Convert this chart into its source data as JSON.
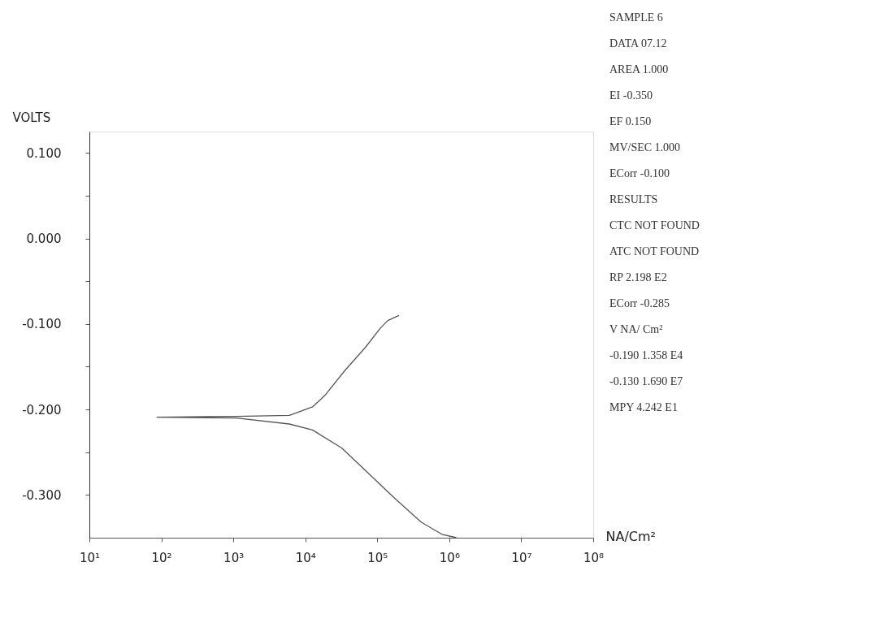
{
  "chart_data": {
    "type": "line",
    "ylabel": "VOLTS",
    "xlabel": "NA/Cm²",
    "log": "x",
    "grid": false,
    "marker": "none",
    "line_style": "solid",
    "xlim": [
      10,
      100000000
    ],
    "xticks": [
      {
        "value": 10,
        "label": "10¹"
      },
      {
        "value": 100,
        "label": "10²"
      },
      {
        "value": 1000,
        "label": "10³"
      },
      {
        "value": 10000,
        "label": "10⁴"
      },
      {
        "value": 100000,
        "label": "10⁵"
      },
      {
        "value": 1000000,
        "label": "10⁶"
      },
      {
        "value": 10000000,
        "label": "10⁷"
      },
      {
        "value": 100000000,
        "label": "10⁸"
      }
    ],
    "ylim": [
      -0.35,
      0.125
    ],
    "yticks": [
      {
        "value": 0.1,
        "label": "0.100"
      },
      {
        "value": 0.05,
        "label": null
      },
      {
        "value": 0,
        "label": "0.000"
      },
      {
        "value": -0.05,
        "label": null
      },
      {
        "value": -0.1,
        "label": "-0.100"
      },
      {
        "value": -0.15,
        "label": null
      },
      {
        "value": -0.2,
        "label": "-0.200"
      },
      {
        "value": -0.25,
        "label": null
      },
      {
        "value": -0.3,
        "label": "-0.300"
      }
    ],
    "series": [
      {
        "color": "#555555",
        "x": [
          1260000,
          790000,
          410000,
          170000,
          76000,
          32000,
          12600,
          6000,
          1100,
          87,
          1100,
          6000,
          12600,
          19000,
          35000,
          69000,
          110000,
          140000,
          200000
        ],
        "values": [
          -0.35,
          -0.346,
          -0.332,
          -0.303,
          -0.275,
          -0.245,
          -0.224,
          -0.217,
          -0.21,
          -0.209,
          -0.208,
          -0.207,
          -0.197,
          -0.183,
          -0.155,
          -0.127,
          -0.105,
          -0.096,
          -0.09
        ]
      }
    ],
    "annotations": [
      "SAMPLE  6",
      "DATA  07.12",
      "AREA  1.000",
      "EI  -0.350",
      "EF  0.150",
      "MV/SEC 1.000",
      "ECorr  -0.100",
      "RESULTS",
      "CTC  NOT FOUND",
      "ATC  NOT FOUND",
      "RP  2.198 E2",
      "ECorr  -0.285",
      "V  NA/ Cm²",
      "-0.190  1.358  E4",
      "-0.130  1.690  E7",
      "MPY  4.242  E1"
    ]
  }
}
